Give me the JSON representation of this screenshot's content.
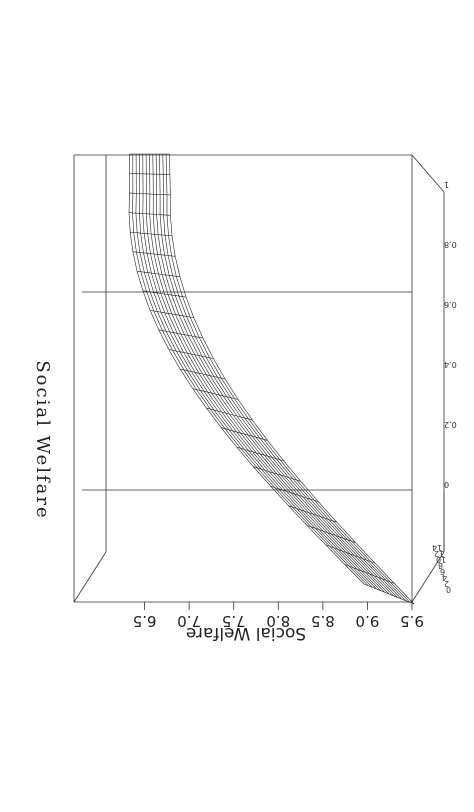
{
  "chart_data": {
    "type": "surface",
    "title": "Social Welfare",
    "zlabel": "Social Welfare",
    "zlim": [
      6.0,
      9.5
    ],
    "z_ticks": [
      "6.5",
      "7.0",
      "7.5",
      "8.0",
      "8.5",
      "9.0",
      "9.5"
    ],
    "x_ticks": [
      "0",
      "2",
      "4",
      "6",
      "8",
      "10",
      "12",
      "14"
    ],
    "y_ticks": [
      "0",
      "0.2",
      "0.4",
      "0.6",
      "0.8",
      "1"
    ],
    "grid": true,
    "orientation": "rotated 180 degrees (image upside-down)",
    "surface": {
      "rows": 22,
      "cols": 12,
      "max_value": 9.2,
      "min_value": 6.0
    }
  }
}
